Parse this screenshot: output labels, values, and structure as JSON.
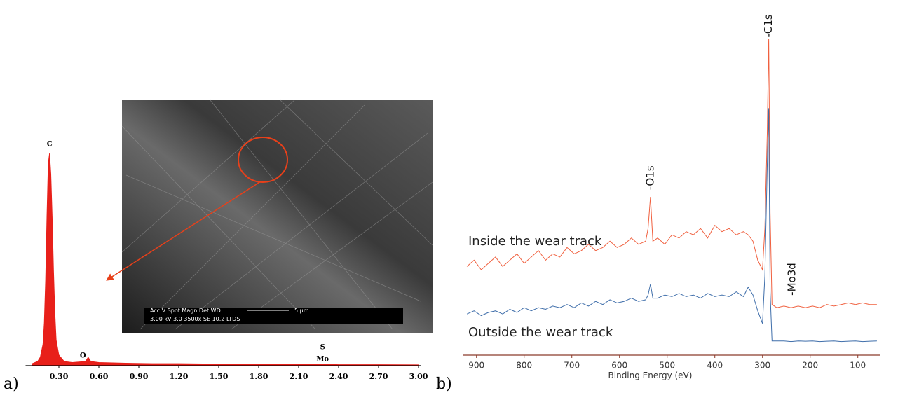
{
  "chart_data": [
    {
      "type": "area",
      "panel_label": "a)",
      "color": "#e8201a",
      "x": [
        0.1,
        0.14,
        0.16,
        0.18,
        0.19,
        0.2,
        0.21,
        0.22,
        0.23,
        0.24,
        0.25,
        0.26,
        0.27,
        0.28,
        0.3,
        0.34,
        0.4,
        0.5,
        0.52,
        0.54,
        0.6,
        0.8,
        1.0,
        1.2,
        1.5,
        1.8,
        2.1,
        2.3,
        2.4,
        2.7,
        3.0
      ],
      "values": [
        1,
        2,
        4,
        10,
        20,
        40,
        70,
        95,
        100,
        90,
        70,
        45,
        25,
        12,
        5,
        2,
        1.5,
        2,
        4,
        2,
        1.5,
        1.2,
        1,
        1,
        0.8,
        0.6,
        0.6,
        0.8,
        0.5,
        0.5,
        0.4
      ],
      "xlim": [
        0.05,
        3.02
      ],
      "ylim": [
        0,
        100
      ],
      "xticks": [
        {
          "value": 0.3,
          "label": "0.30"
        },
        {
          "value": 0.6,
          "label": "0.60"
        },
        {
          "value": 0.9,
          "label": "0.90"
        },
        {
          "value": 1.2,
          "label": "1.20"
        },
        {
          "value": 1.5,
          "label": "1.50"
        },
        {
          "value": 1.8,
          "label": "1.80"
        },
        {
          "value": 2.1,
          "label": "2.10"
        },
        {
          "value": 2.4,
          "label": "2.40"
        },
        {
          "value": 2.7,
          "label": "2.70"
        },
        {
          "value": 3.0,
          "label": "3.00"
        }
      ],
      "annotations": [
        {
          "text": "C",
          "x": 0.23,
          "y": 104
        },
        {
          "text": "O",
          "x": 0.48,
          "y": 4.6
        },
        {
          "text": "S",
          "x": 2.28,
          "y": 8.5
        },
        {
          "text": "Mo",
          "x": 2.28,
          "y": 3
        }
      ],
      "inset": {
        "settings": "Acc.V   Spot  Magn   Det  WD",
        "scale": "5 µm",
        "readout": "3.00 kV  3.0   3500x  SE   10.2   LTDS"
      }
    },
    {
      "type": "line",
      "panel_label": "b)",
      "xlabel": "Binding Energy (eV)",
      "x": [
        920,
        905,
        890,
        875,
        860,
        845,
        830,
        815,
        800,
        785,
        770,
        755,
        740,
        725,
        710,
        695,
        680,
        665,
        650,
        635,
        620,
        605,
        590,
        575,
        560,
        545,
        540,
        535,
        530,
        520,
        505,
        490,
        475,
        460,
        445,
        430,
        415,
        400,
        385,
        370,
        355,
        340,
        330,
        320,
        310,
        300,
        295,
        290,
        287,
        284,
        280,
        270,
        255,
        240,
        225,
        210,
        195,
        180,
        165,
        150,
        135,
        120,
        105,
        90,
        75,
        60
      ],
      "series": [
        {
          "name": "Inside the wear track",
          "color": "#f0603f",
          "values": [
            28,
            30,
            27,
            29,
            31,
            28,
            30,
            32,
            29,
            31,
            33,
            30,
            32,
            31,
            34,
            32,
            33,
            35,
            33,
            34,
            36,
            34,
            35,
            37,
            35,
            36,
            40,
            50,
            36,
            37,
            35,
            38,
            37,
            39,
            38,
            40,
            37,
            41,
            39,
            40,
            38,
            39,
            38,
            36,
            30,
            27,
            40,
            70,
            100,
            45,
            16,
            15,
            15.5,
            15,
            15.5,
            15,
            15.5,
            15,
            16,
            15.5,
            16,
            16.5,
            16,
            16.5,
            16,
            16
          ]
        },
        {
          "name": "Outside the wear track",
          "color": "#3f6eaa",
          "values": [
            13,
            14,
            12.5,
            13.5,
            14,
            13,
            14.5,
            13.5,
            15,
            14,
            15,
            14.5,
            15.5,
            15,
            16,
            15,
            16.5,
            15.5,
            17,
            16,
            17.5,
            16.5,
            17,
            18,
            17,
            17.5,
            19,
            22.5,
            18,
            18,
            19,
            18.5,
            19.5,
            18.5,
            19,
            18,
            19.5,
            18.5,
            19,
            18.5,
            20,
            18.5,
            21.5,
            19,
            14,
            10,
            25,
            60,
            78,
            20,
            4.5,
            4.5,
            4.5,
            4.3,
            4.5,
            4.4,
            4.5,
            4.3,
            4.4,
            4.5,
            4.3,
            4.4,
            4.5,
            4.3,
            4.4,
            4.5
          ]
        }
      ],
      "xlim": [
        929,
        54
      ],
      "ylim": [
        0,
        100
      ],
      "xticks": [
        900,
        800,
        700,
        600,
        500,
        400,
        300,
        200,
        100
      ],
      "annotations": [
        {
          "text": "-O1s",
          "x": 535,
          "y": 56
        },
        {
          "text": "-C1s",
          "x": 287,
          "y": 104
        },
        {
          "text": "-Mo3d",
          "x": 238,
          "y": 24
        }
      ]
    }
  ]
}
